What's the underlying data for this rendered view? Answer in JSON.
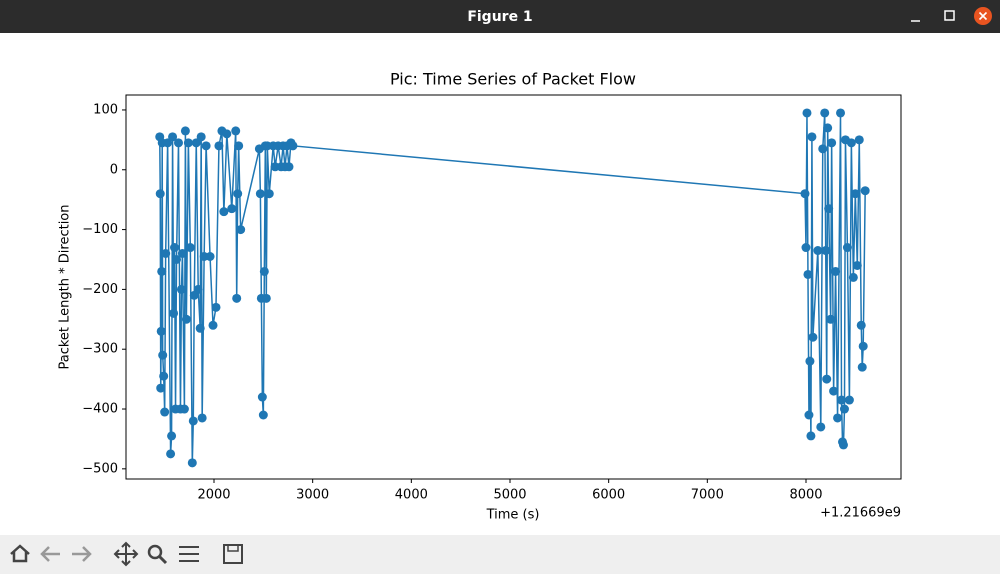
{
  "window": {
    "title": "Figure 1"
  },
  "chart_data": {
    "type": "line",
    "title": "Pic: Time Series of Packet Flow",
    "x_label": "Time (s)",
    "y_label": "Packet Length * Direction",
    "x_offset_label": "+1.21669e9",
    "color": "#1f77b4",
    "markers": true,
    "grid": false,
    "xlim": [
      1108,
      8963
    ],
    "ylim": [
      -517,
      125
    ],
    "xticks": [
      2000,
      3000,
      4000,
      5000,
      6000,
      7000,
      8000
    ],
    "yticks": [
      {
        "value": -500,
        "label": "−500"
      },
      {
        "value": -400,
        "label": "−400"
      },
      {
        "value": -300,
        "label": "−300"
      },
      {
        "value": -200,
        "label": "−200"
      },
      {
        "value": -100,
        "label": "−100"
      },
      0,
      100
    ],
    "x": [
      1450,
      1455,
      1460,
      1465,
      1470,
      1475,
      1480,
      1490,
      1500,
      1510,
      1530,
      1560,
      1570,
      1580,
      1590,
      1600,
      1610,
      1620,
      1640,
      1660,
      1670,
      1680,
      1700,
      1710,
      1720,
      1740,
      1760,
      1780,
      1790,
      1800,
      1820,
      1840,
      1860,
      1870,
      1880,
      1900,
      1920,
      1960,
      1990,
      2020,
      2050,
      2080,
      2100,
      2130,
      2180,
      2220,
      2230,
      2240,
      2250,
      2270,
      2460,
      2470,
      2480,
      2490,
      2500,
      2510,
      2520,
      2530,
      2540,
      2560,
      2600,
      2620,
      2650,
      2680,
      2700,
      2720,
      2740,
      2760,
      2780,
      2800,
      7990,
      8000,
      8010,
      8020,
      8030,
      8040,
      8050,
      8060,
      8070,
      8120,
      8150,
      8170,
      8190,
      8200,
      8210,
      8220,
      8230,
      8250,
      8260,
      8280,
      8300,
      8320,
      8350,
      8360,
      8370,
      8380,
      8390,
      8400,
      8420,
      8440,
      8460,
      8480,
      8500,
      8520,
      8540,
      8560,
      8570,
      8580,
      8600
    ],
    "values": [
      55,
      -40,
      -365,
      -270,
      -170,
      45,
      -310,
      -345,
      -405,
      -140,
      45,
      -475,
      -445,
      55,
      -240,
      -130,
      -400,
      -150,
      45,
      -400,
      -200,
      -140,
      -400,
      65,
      -250,
      45,
      -130,
      -490,
      -420,
      -210,
      45,
      -200,
      -265,
      55,
      -415,
      -145,
      40,
      -145,
      -260,
      -230,
      40,
      65,
      -70,
      60,
      -65,
      65,
      -215,
      -40,
      40,
      -100,
      35,
      -40,
      -215,
      -380,
      -410,
      -170,
      40,
      -215,
      40,
      -40,
      40,
      5,
      40,
      5,
      40,
      5,
      40,
      5,
      45,
      40,
      -40,
      -130,
      95,
      -175,
      -410,
      -320,
      -445,
      55,
      -280,
      -135,
      -430,
      35,
      95,
      -135,
      -350,
      70,
      -65,
      -250,
      45,
      -370,
      -170,
      -415,
      95,
      -385,
      -455,
      -460,
      -400,
      50,
      -130,
      -385,
      45,
      -180,
      -40,
      -160,
      50,
      -260,
      -330,
      -295,
      -35
    ]
  }
}
